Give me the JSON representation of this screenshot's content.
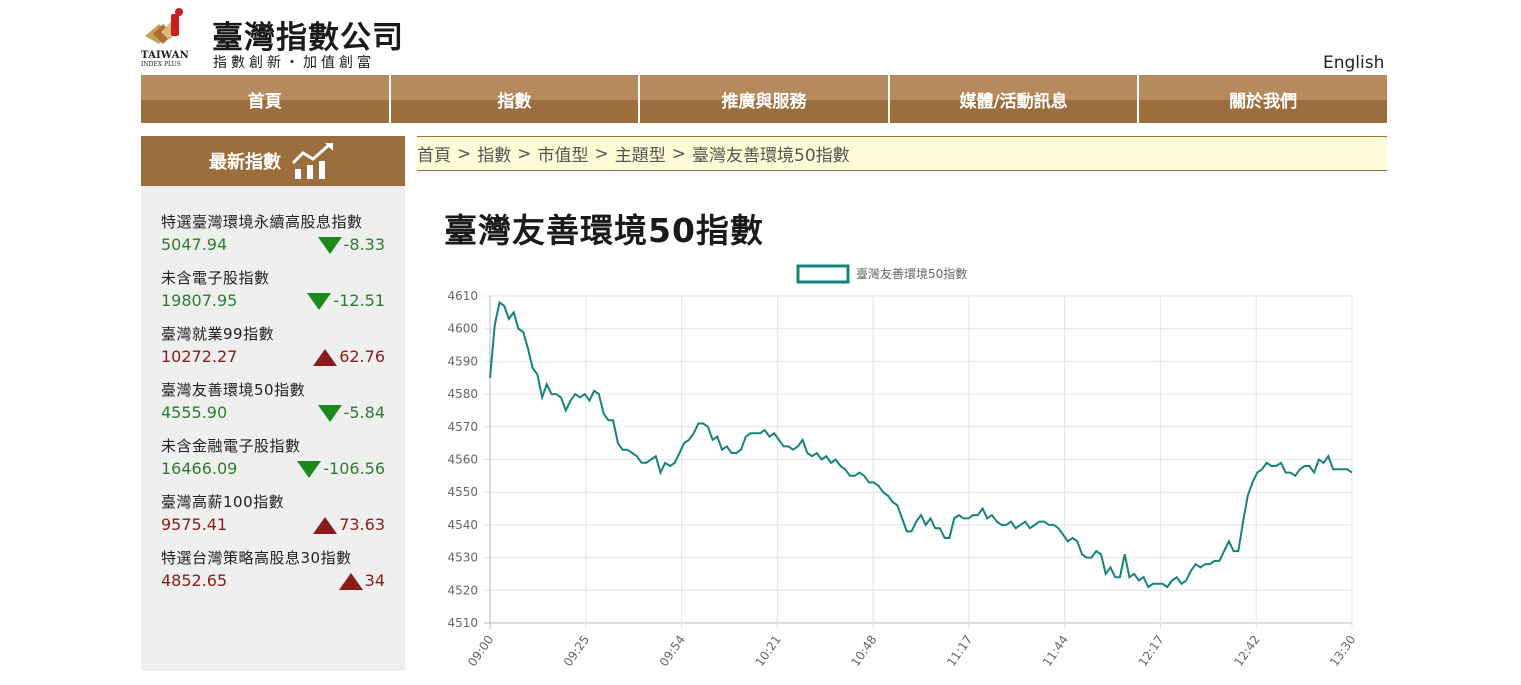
{
  "header": {
    "brand_name": "臺灣指數公司",
    "slogan": "指數創新・加值創富",
    "logo_text_main": "TAIWAN",
    "logo_text_sub": "INDEX PLUS",
    "language_link": "English"
  },
  "nav": {
    "items": [
      {
        "label": "首頁"
      },
      {
        "label": "指數"
      },
      {
        "label": "推廣與服務"
      },
      {
        "label": "媒體/活動訊息"
      },
      {
        "label": "關於我們"
      }
    ]
  },
  "sidebar": {
    "title": "最新指數",
    "title_icon": "chart-growth-icon",
    "items": [
      {
        "name": "特選臺灣環境永續高股息指數",
        "value": "5047.94",
        "change": "-8.33",
        "direction": "down"
      },
      {
        "name": "未含電子股指數",
        "value": "19807.95",
        "change": "-12.51",
        "direction": "down"
      },
      {
        "name": "臺灣就業99指數",
        "value": "10272.27",
        "change": "62.76",
        "direction": "up"
      },
      {
        "name": "臺灣友善環境50指數",
        "value": "4555.90",
        "change": "-5.84",
        "direction": "down"
      },
      {
        "name": "未含金融電子股指數",
        "value": "16466.09",
        "change": "-106.56",
        "direction": "down"
      },
      {
        "name": "臺灣高薪100指數",
        "value": "9575.41",
        "change": "73.63",
        "direction": "up"
      },
      {
        "name": "特選台灣策略高股息30指數",
        "value": "4852.65",
        "change": "34",
        "direction": "up"
      }
    ]
  },
  "breadcrumb": {
    "items": [
      "首頁",
      "指數",
      "市值型",
      "主題型",
      "臺灣友善環境50指數"
    ],
    "separator": ">"
  },
  "page_title": "臺灣友善環境50指數",
  "colors": {
    "nav_top": "#b48a5e",
    "nav_bottom": "#9c6e3e",
    "line": "#14847b",
    "down": "#1a8a1a",
    "up": "#8b1a1a"
  },
  "chart_data": {
    "type": "line",
    "legend": "臺灣友善環境50指數",
    "legend_position": "top",
    "grid": true,
    "ylim": [
      4510,
      4610
    ],
    "yticks": [
      4510,
      4520,
      4530,
      4540,
      4550,
      4560,
      4570,
      4580,
      4590,
      4600,
      4610
    ],
    "xticks": [
      "09:00",
      "09:25",
      "09:54",
      "10:21",
      "10:48",
      "11:17",
      "11:44",
      "12:17",
      "12:42",
      "13:30"
    ],
    "series": [
      {
        "name": "臺灣友善環境50指數",
        "points": [
          [
            0,
            4585
          ],
          [
            2,
            4601
          ],
          [
            4,
            4608
          ],
          [
            6,
            4607
          ],
          [
            8,
            4603
          ],
          [
            10,
            4605
          ],
          [
            12,
            4600
          ],
          [
            14,
            4599
          ],
          [
            16,
            4594
          ],
          [
            18,
            4588
          ],
          [
            20,
            4586
          ],
          [
            22,
            4579
          ],
          [
            24,
            4583
          ],
          [
            26,
            4580
          ],
          [
            28,
            4580
          ],
          [
            30,
            4579
          ],
          [
            32,
            4575
          ],
          [
            34,
            4578
          ],
          [
            36,
            4580
          ],
          [
            38,
            4579
          ],
          [
            40,
            4580
          ],
          [
            42,
            4578
          ],
          [
            44,
            4581
          ],
          [
            46,
            4580
          ],
          [
            48,
            4574
          ],
          [
            50,
            4572
          ],
          [
            52,
            4572
          ],
          [
            54,
            4565
          ],
          [
            56,
            4563
          ],
          [
            58,
            4563
          ],
          [
            60,
            4562
          ],
          [
            62,
            4561
          ],
          [
            64,
            4559
          ],
          [
            66,
            4559
          ],
          [
            68,
            4560
          ],
          [
            70,
            4561
          ],
          [
            72,
            4556
          ],
          [
            74,
            4559
          ],
          [
            76,
            4558
          ],
          [
            78,
            4559
          ],
          [
            80,
            4562
          ],
          [
            82,
            4565
          ],
          [
            84,
            4566
          ],
          [
            86,
            4568
          ],
          [
            88,
            4571
          ],
          [
            90,
            4571
          ],
          [
            92,
            4570
          ],
          [
            94,
            4566
          ],
          [
            96,
            4567
          ],
          [
            98,
            4563
          ],
          [
            100,
            4564
          ],
          [
            102,
            4562
          ],
          [
            104,
            4562
          ],
          [
            106,
            4563
          ],
          [
            108,
            4567
          ],
          [
            110,
            4568
          ],
          [
            112,
            4568
          ],
          [
            114,
            4568
          ],
          [
            116,
            4569
          ],
          [
            118,
            4567
          ],
          [
            120,
            4568
          ],
          [
            122,
            4566
          ],
          [
            124,
            4564
          ],
          [
            126,
            4564
          ],
          [
            128,
            4563
          ],
          [
            130,
            4564
          ],
          [
            132,
            4566
          ],
          [
            134,
            4562
          ],
          [
            136,
            4561
          ],
          [
            138,
            4562
          ],
          [
            140,
            4560
          ],
          [
            142,
            4561
          ],
          [
            144,
            4559
          ],
          [
            146,
            4560
          ],
          [
            148,
            4558
          ],
          [
            150,
            4557
          ],
          [
            152,
            4555
          ],
          [
            154,
            4555
          ],
          [
            156,
            4556
          ],
          [
            158,
            4555
          ],
          [
            160,
            4553
          ],
          [
            162,
            4553
          ],
          [
            164,
            4552
          ],
          [
            166,
            4550
          ],
          [
            168,
            4549
          ],
          [
            170,
            4547
          ],
          [
            172,
            4546
          ],
          [
            174,
            4542
          ],
          [
            176,
            4538
          ],
          [
            178,
            4538
          ],
          [
            180,
            4541
          ],
          [
            182,
            4543
          ],
          [
            184,
            4540
          ],
          [
            186,
            4542
          ],
          [
            188,
            4539
          ],
          [
            190,
            4539
          ],
          [
            192,
            4536
          ],
          [
            194,
            4536
          ],
          [
            196,
            4542
          ],
          [
            198,
            4543
          ],
          [
            200,
            4542
          ],
          [
            202,
            4542
          ],
          [
            204,
            4543
          ],
          [
            206,
            4543
          ],
          [
            208,
            4545
          ],
          [
            210,
            4542
          ],
          [
            212,
            4543
          ],
          [
            214,
            4541
          ],
          [
            216,
            4540
          ],
          [
            218,
            4540
          ],
          [
            220,
            4541
          ],
          [
            222,
            4539
          ],
          [
            224,
            4540
          ],
          [
            226,
            4541
          ],
          [
            228,
            4539
          ],
          [
            230,
            4540
          ],
          [
            232,
            4541
          ],
          [
            234,
            4541
          ],
          [
            236,
            4540
          ],
          [
            238,
            4540
          ],
          [
            240,
            4539
          ],
          [
            242,
            4537
          ],
          [
            244,
            4535
          ],
          [
            246,
            4536
          ],
          [
            248,
            4535
          ],
          [
            250,
            4531
          ],
          [
            252,
            4530
          ],
          [
            254,
            4530
          ],
          [
            256,
            4532
          ],
          [
            258,
            4531
          ],
          [
            260,
            4525
          ],
          [
            262,
            4527
          ],
          [
            264,
            4524
          ],
          [
            266,
            4524
          ],
          [
            268,
            4531
          ],
          [
            270,
            4524
          ],
          [
            272,
            4525
          ],
          [
            274,
            4523
          ],
          [
            276,
            4524
          ],
          [
            278,
            4521
          ],
          [
            280,
            4522
          ],
          [
            282,
            4522
          ],
          [
            284,
            4522
          ],
          [
            286,
            4521
          ],
          [
            288,
            4523
          ],
          [
            290,
            4524
          ],
          [
            292,
            4522
          ],
          [
            294,
            4523
          ],
          [
            296,
            4526
          ],
          [
            298,
            4528
          ],
          [
            300,
            4527
          ],
          [
            302,
            4528
          ],
          [
            304,
            4528
          ],
          [
            306,
            4529
          ],
          [
            308,
            4529
          ],
          [
            310,
            4532
          ],
          [
            312,
            4535
          ],
          [
            314,
            4532
          ],
          [
            316,
            4532
          ],
          [
            318,
            4541
          ],
          [
            320,
            4549
          ],
          [
            322,
            4553
          ],
          [
            324,
            4556
          ],
          [
            326,
            4557
          ],
          [
            328,
            4559
          ],
          [
            330,
            4558
          ],
          [
            332,
            4558
          ],
          [
            334,
            4559
          ],
          [
            336,
            4556
          ],
          [
            338,
            4556
          ],
          [
            340,
            4555
          ],
          [
            342,
            4557
          ],
          [
            344,
            4558
          ],
          [
            346,
            4558
          ],
          [
            348,
            4556
          ],
          [
            350,
            4560
          ],
          [
            352,
            4559
          ],
          [
            354,
            4561
          ],
          [
            356,
            4557
          ],
          [
            358,
            4557
          ],
          [
            360,
            4557
          ],
          [
            362,
            4557
          ],
          [
            364,
            4556
          ]
        ]
      }
    ]
  }
}
